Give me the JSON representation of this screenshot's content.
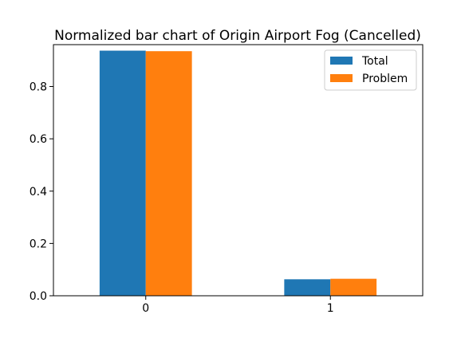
{
  "chart_data": {
    "type": "bar",
    "title": "Normalized bar chart of Origin Airport Fog (Cancelled)",
    "xlabel": "",
    "ylabel": "",
    "categories": [
      "0",
      "1"
    ],
    "series": [
      {
        "name": "Total",
        "values": [
          0.937,
          0.063
        ],
        "color": "#1f77b4"
      },
      {
        "name": "Problem",
        "values": [
          0.935,
          0.065
        ],
        "color": "#ff7f0e"
      }
    ],
    "ylim": [
      0,
      0.96
    ],
    "yticks": [
      "0.0",
      "0.2",
      "0.4",
      "0.6",
      "0.8"
    ],
    "grid": false,
    "legend_position": "top-right"
  }
}
